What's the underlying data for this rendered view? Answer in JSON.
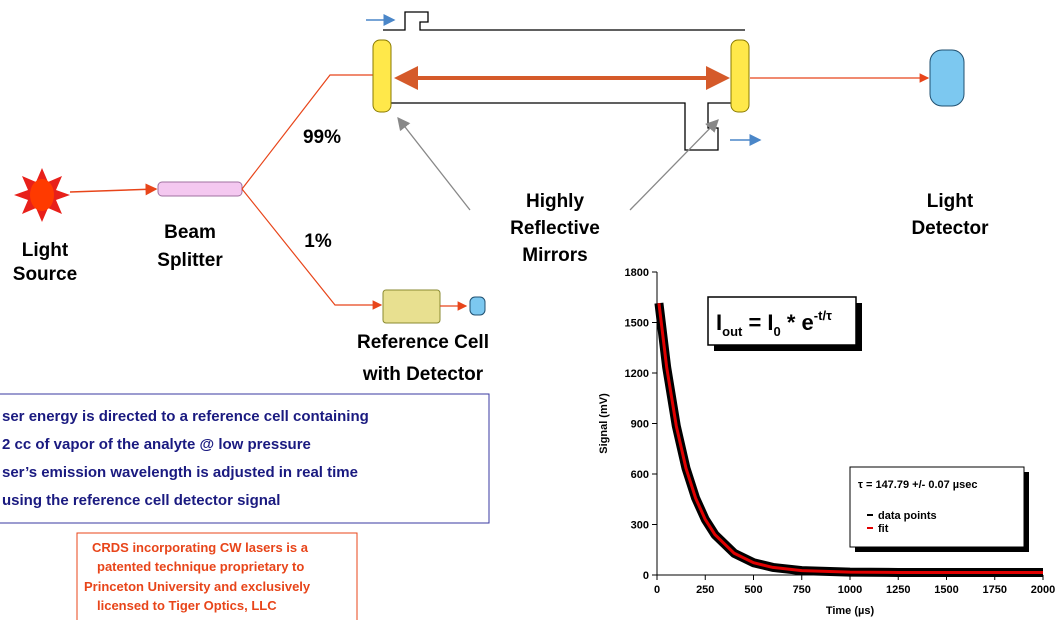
{
  "diagram": {
    "light_source": [
      "Light",
      "Source"
    ],
    "beam_splitter": [
      "Beam",
      "Splitter"
    ],
    "split_high": "99%",
    "split_low": "1%",
    "mirrors": [
      "Highly",
      "Reflective",
      "Mirrors"
    ],
    "detector": [
      "Light",
      "Detector"
    ],
    "reference_cell": [
      "Reference Cell",
      "with Detector"
    ]
  },
  "note_box": {
    "lines": [
      "ser energy is directed to a reference cell containing",
      "2 cc of  vapor of the analyte @ low pressure",
      "ser’s emission wavelength is adjusted in real time",
      "using the reference cell detector signal"
    ]
  },
  "license_box": {
    "lines": [
      "CRDS incorporating CW lasers is a",
      "patented technique proprietary to",
      "Princeton University and exclusively",
      "licensed to Tiger Optics, LLC"
    ]
  },
  "chart_data": {
    "type": "line",
    "y_label": "Signal (mV)",
    "x_label": "Time (µs)",
    "equation": [
      "I",
      "out",
      " = I",
      "0",
      " * e",
      "-t/τ"
    ],
    "annotation": "τ = 147.79 +/- 0.07 µsec",
    "x": [
      10,
      50,
      100,
      150,
      200,
      250,
      300,
      400,
      500,
      600,
      750,
      1000,
      1250,
      1500,
      1750,
      2000
    ],
    "series": [
      {
        "name": "data points",
        "color": "#000000",
        "values": [
          1615,
          1235,
          885,
          635,
          457,
          330,
          240,
          129,
          73,
          45,
          26,
          17,
          15,
          15,
          15,
          15
        ]
      },
      {
        "name": "fit",
        "color": "#e00000",
        "values": [
          1615,
          1235,
          885,
          635,
          457,
          330,
          240,
          129,
          73,
          45,
          26,
          17,
          15,
          15,
          15,
          15
        ]
      }
    ],
    "xlim": [
      0,
      2000
    ],
    "xticks": [
      0,
      250,
      500,
      750,
      1000,
      1250,
      1500,
      1750,
      2000
    ],
    "ylim": [
      0,
      1800
    ],
    "yticks": [
      0,
      300,
      600,
      900,
      1200,
      1500,
      1800
    ]
  }
}
